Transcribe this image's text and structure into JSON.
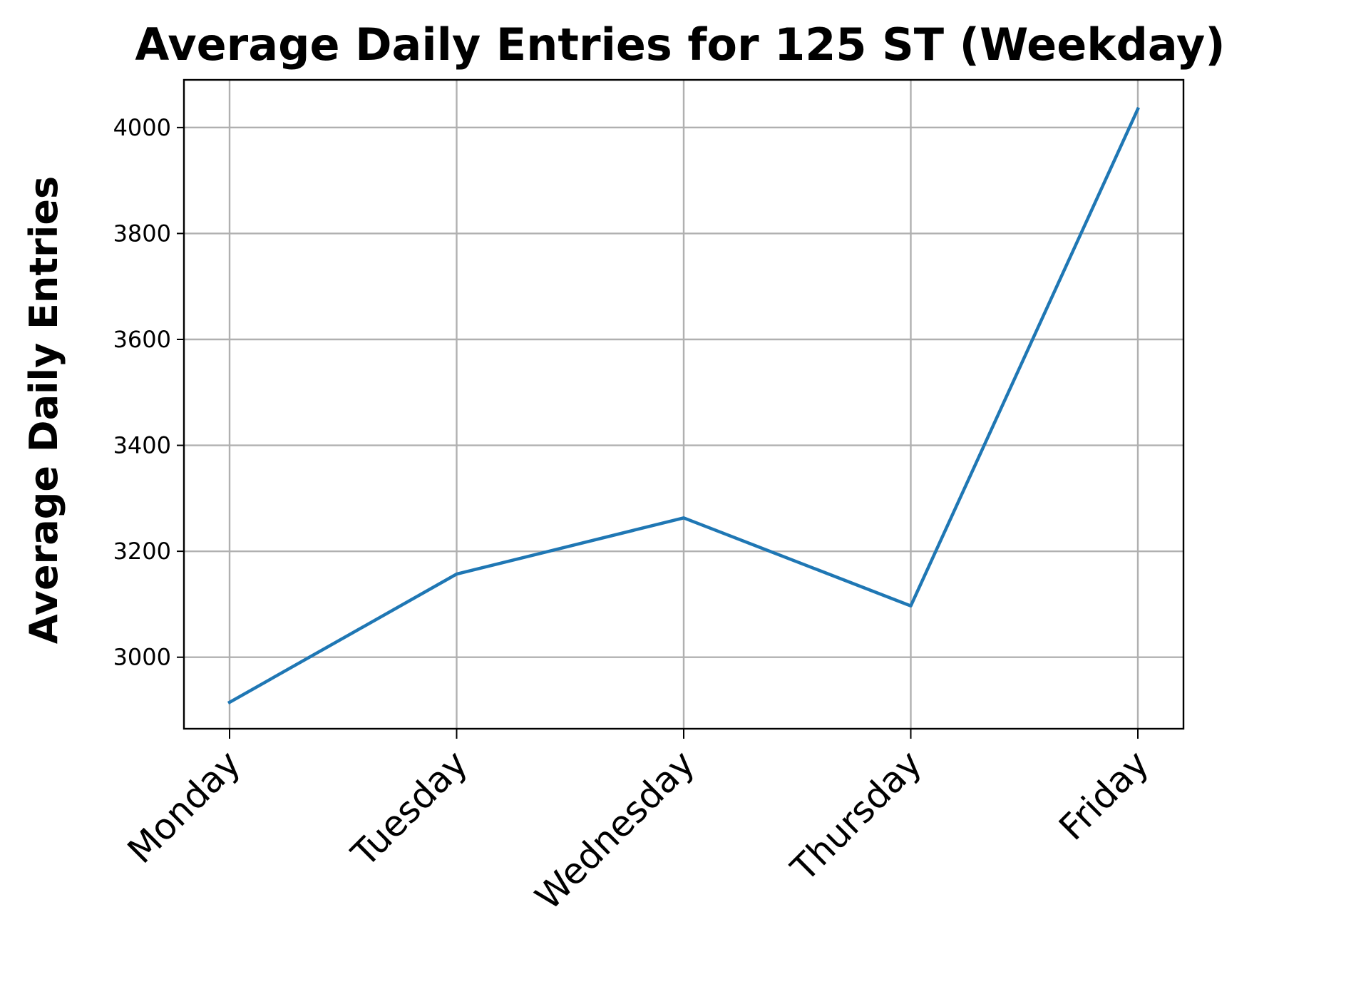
{
  "chart_data": {
    "type": "line",
    "title": "Average Daily Entries for 125 ST (Weekday)",
    "xlabel": "",
    "ylabel": "Average Daily Entries",
    "categories": [
      "Monday",
      "Tuesday",
      "Wednesday",
      "Thursday",
      "Friday"
    ],
    "series": [
      {
        "values": [
          2915,
          3157,
          3263,
          3097,
          4035
        ],
        "color": "#1f77b4"
      }
    ],
    "ylim": [
      2865,
      4090
    ],
    "yticks": [
      3000,
      3200,
      3400,
      3600,
      3800,
      4000
    ],
    "grid": true,
    "x_tick_rotation": 45
  }
}
